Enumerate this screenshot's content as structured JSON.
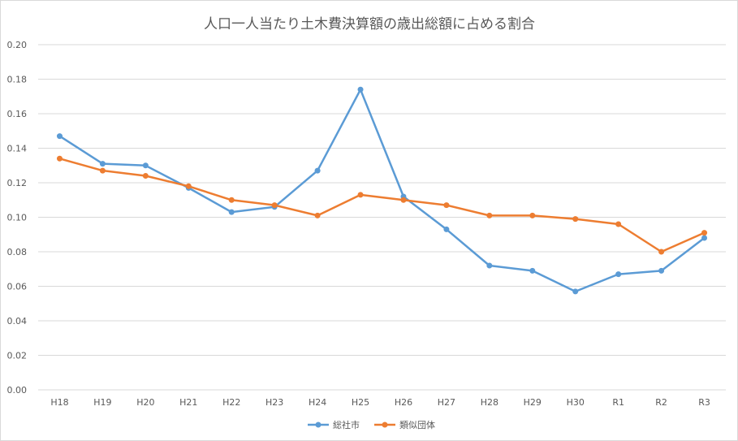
{
  "chart_data": {
    "type": "line",
    "title": "人口一人当たり土木費決算額の歳出総額に占める割合",
    "xlabel": "",
    "ylabel": "",
    "categories": [
      "H18",
      "H19",
      "H20",
      "H21",
      "H22",
      "H23",
      "H24",
      "H25",
      "H26",
      "H27",
      "H28",
      "H29",
      "H30",
      "R1",
      "R2",
      "R3"
    ],
    "ylim": [
      0,
      0.2
    ],
    "yticks": [
      "0.00",
      "0.02",
      "0.04",
      "0.06",
      "0.08",
      "0.10",
      "0.12",
      "0.14",
      "0.16",
      "0.18",
      "0.20"
    ],
    "grid": true,
    "legend_position": "bottom",
    "series": [
      {
        "name": "総社市",
        "color": "#5b9bd5",
        "values": [
          0.147,
          0.131,
          0.13,
          0.117,
          0.103,
          0.106,
          0.127,
          0.174,
          0.112,
          0.093,
          0.072,
          0.069,
          0.057,
          0.067,
          0.069,
          0.088
        ]
      },
      {
        "name": "類似団体",
        "color": "#ed7d31",
        "values": [
          0.134,
          0.127,
          0.124,
          0.118,
          0.11,
          0.107,
          0.101,
          0.113,
          0.11,
          0.107,
          0.101,
          0.101,
          0.099,
          0.096,
          0.08,
          0.091
        ]
      }
    ]
  }
}
